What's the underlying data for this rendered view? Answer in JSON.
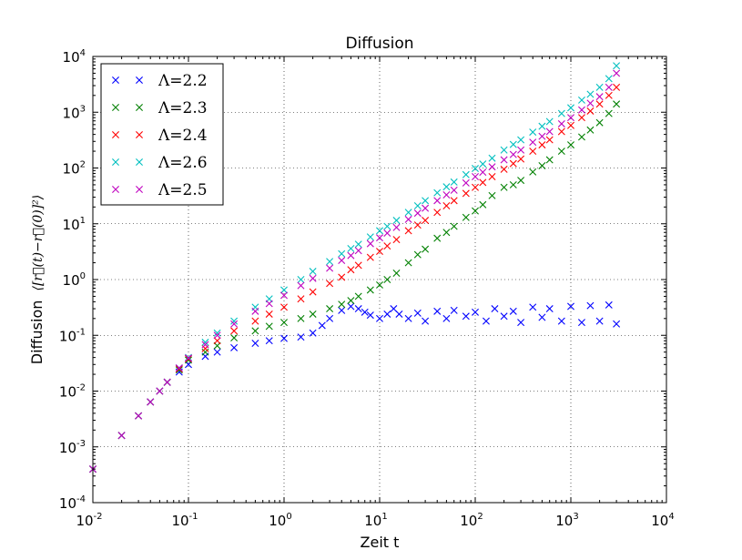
{
  "chart_data": {
    "type": "scatter",
    "title": "Diffusion",
    "xlabel": "Zeit t",
    "ylabel_prefix": "Diffusion",
    "ylabel_math": "⟨[r⃗(t)−r⃗(0)]²⟩",
    "xscale": "log",
    "yscale": "log",
    "xlim": [
      0.01,
      10000
    ],
    "ylim": [
      0.0001,
      10000
    ],
    "grid": true,
    "legend_placement": "top-left",
    "marker": "x",
    "x_ticks": [
      {
        "base": "10",
        "exp": "-2"
      },
      {
        "base": "10",
        "exp": "-1"
      },
      {
        "base": "10",
        "exp": "0"
      },
      {
        "base": "10",
        "exp": "1"
      },
      {
        "base": "10",
        "exp": "2"
      },
      {
        "base": "10",
        "exp": "3"
      },
      {
        "base": "10",
        "exp": "4"
      }
    ],
    "y_ticks": [
      {
        "base": "10",
        "exp": "-4"
      },
      {
        "base": "10",
        "exp": "-3"
      },
      {
        "base": "10",
        "exp": "-2"
      },
      {
        "base": "10",
        "exp": "-1"
      },
      {
        "base": "10",
        "exp": "0"
      },
      {
        "base": "10",
        "exp": "1"
      },
      {
        "base": "10",
        "exp": "2"
      },
      {
        "base": "10",
        "exp": "3"
      },
      {
        "base": "10",
        "exp": "4"
      }
    ],
    "series": [
      {
        "name": "Λ=2.2",
        "color": "#0000ff",
        "points": [
          [
            0.01,
            0.0004
          ],
          [
            0.02,
            0.0016
          ],
          [
            0.03,
            0.0036
          ],
          [
            0.04,
            0.0064
          ],
          [
            0.05,
            0.01
          ],
          [
            0.06,
            0.0144
          ],
          [
            0.08,
            0.022
          ],
          [
            0.1,
            0.03
          ],
          [
            0.15,
            0.042
          ],
          [
            0.2,
            0.05
          ],
          [
            0.3,
            0.06
          ],
          [
            0.5,
            0.072
          ],
          [
            0.7,
            0.08
          ],
          [
            1,
            0.088
          ],
          [
            1.5,
            0.093
          ],
          [
            2,
            0.11
          ],
          [
            2.5,
            0.15
          ],
          [
            3,
            0.2
          ],
          [
            4,
            0.28
          ],
          [
            5,
            0.33
          ],
          [
            6,
            0.3
          ],
          [
            7,
            0.26
          ],
          [
            8,
            0.23
          ],
          [
            10,
            0.2
          ],
          [
            12,
            0.24
          ],
          [
            14,
            0.3
          ],
          [
            16,
            0.24
          ],
          [
            20,
            0.2
          ],
          [
            25,
            0.25
          ],
          [
            30,
            0.18
          ],
          [
            40,
            0.27
          ],
          [
            50,
            0.2
          ],
          [
            60,
            0.28
          ],
          [
            80,
            0.22
          ],
          [
            100,
            0.26
          ],
          [
            130,
            0.18
          ],
          [
            160,
            0.3
          ],
          [
            200,
            0.22
          ],
          [
            250,
            0.27
          ],
          [
            300,
            0.17
          ],
          [
            400,
            0.32
          ],
          [
            500,
            0.21
          ],
          [
            600,
            0.3
          ],
          [
            800,
            0.18
          ],
          [
            1000,
            0.33
          ],
          [
            1300,
            0.17
          ],
          [
            1600,
            0.34
          ],
          [
            2000,
            0.18
          ],
          [
            2500,
            0.35
          ],
          [
            3000,
            0.16
          ]
        ]
      },
      {
        "name": "Λ=2.3",
        "color": "#008000",
        "points": [
          [
            0.01,
            0.0004
          ],
          [
            0.02,
            0.0016
          ],
          [
            0.03,
            0.0036
          ],
          [
            0.04,
            0.0064
          ],
          [
            0.05,
            0.01
          ],
          [
            0.06,
            0.0144
          ],
          [
            0.08,
            0.024
          ],
          [
            0.1,
            0.036
          ],
          [
            0.15,
            0.05
          ],
          [
            0.2,
            0.065
          ],
          [
            0.3,
            0.09
          ],
          [
            0.5,
            0.12
          ],
          [
            0.7,
            0.145
          ],
          [
            1,
            0.17
          ],
          [
            1.5,
            0.2
          ],
          [
            2,
            0.24
          ],
          [
            3,
            0.3
          ],
          [
            4,
            0.36
          ],
          [
            5,
            0.42
          ],
          [
            6,
            0.5
          ],
          [
            8,
            0.65
          ],
          [
            10,
            0.8
          ],
          [
            12,
            1.0
          ],
          [
            15,
            1.3
          ],
          [
            20,
            2.0
          ],
          [
            25,
            2.8
          ],
          [
            30,
            3.5
          ],
          [
            40,
            5.5
          ],
          [
            50,
            7.0
          ],
          [
            60,
            9.0
          ],
          [
            80,
            13
          ],
          [
            100,
            17
          ],
          [
            120,
            22
          ],
          [
            150,
            32
          ],
          [
            200,
            45
          ],
          [
            250,
            50
          ],
          [
            300,
            60
          ],
          [
            400,
            85
          ],
          [
            500,
            110
          ],
          [
            600,
            140
          ],
          [
            800,
            200
          ],
          [
            1000,
            260
          ],
          [
            1300,
            360
          ],
          [
            1600,
            480
          ],
          [
            2000,
            650
          ],
          [
            2500,
            950
          ],
          [
            3000,
            1400
          ]
        ]
      },
      {
        "name": "Λ=2.4",
        "color": "#ff0000",
        "points": [
          [
            0.01,
            0.0004
          ],
          [
            0.02,
            0.0016
          ],
          [
            0.03,
            0.0036
          ],
          [
            0.04,
            0.0064
          ],
          [
            0.05,
            0.01
          ],
          [
            0.06,
            0.0144
          ],
          [
            0.08,
            0.025
          ],
          [
            0.1,
            0.038
          ],
          [
            0.15,
            0.058
          ],
          [
            0.2,
            0.08
          ],
          [
            0.3,
            0.12
          ],
          [
            0.5,
            0.18
          ],
          [
            0.7,
            0.24
          ],
          [
            1,
            0.32
          ],
          [
            1.5,
            0.45
          ],
          [
            2,
            0.6
          ],
          [
            3,
            0.85
          ],
          [
            4,
            1.1
          ],
          [
            5,
            1.5
          ],
          [
            6,
            1.8
          ],
          [
            8,
            2.5
          ],
          [
            10,
            3.2
          ],
          [
            12,
            4.0
          ],
          [
            15,
            5.2
          ],
          [
            20,
            7.5
          ],
          [
            25,
            9.5
          ],
          [
            30,
            11.5
          ],
          [
            40,
            16
          ],
          [
            50,
            21
          ],
          [
            60,
            26
          ],
          [
            80,
            35
          ],
          [
            100,
            45
          ],
          [
            120,
            55
          ],
          [
            150,
            70
          ],
          [
            200,
            95
          ],
          [
            250,
            120
          ],
          [
            300,
            145
          ],
          [
            400,
            200
          ],
          [
            500,
            260
          ],
          [
            600,
            320
          ],
          [
            800,
            450
          ],
          [
            1000,
            580
          ],
          [
            1300,
            800
          ],
          [
            1600,
            1050
          ],
          [
            2000,
            1400
          ],
          [
            2500,
            2000
          ],
          [
            3000,
            2800
          ]
        ]
      },
      {
        "name": "Λ=2.6",
        "color": "#00bfbf",
        "points": [
          [
            0.01,
            0.0004
          ],
          [
            0.02,
            0.0016
          ],
          [
            0.03,
            0.0036
          ],
          [
            0.04,
            0.0064
          ],
          [
            0.05,
            0.01
          ],
          [
            0.06,
            0.0144
          ],
          [
            0.08,
            0.026
          ],
          [
            0.1,
            0.04
          ],
          [
            0.15,
            0.075
          ],
          [
            0.2,
            0.11
          ],
          [
            0.3,
            0.18
          ],
          [
            0.5,
            0.32
          ],
          [
            0.7,
            0.45
          ],
          [
            1,
            0.65
          ],
          [
            1.5,
            1.0
          ],
          [
            2,
            1.4
          ],
          [
            3,
            2.1
          ],
          [
            4,
            2.9
          ],
          [
            5,
            3.6
          ],
          [
            6,
            4.3
          ],
          [
            8,
            5.8
          ],
          [
            10,
            7.5
          ],
          [
            12,
            9.0
          ],
          [
            15,
            11.5
          ],
          [
            20,
            16
          ],
          [
            25,
            21
          ],
          [
            30,
            26
          ],
          [
            40,
            36
          ],
          [
            50,
            46
          ],
          [
            60,
            56
          ],
          [
            80,
            76
          ],
          [
            100,
            98
          ],
          [
            120,
            118
          ],
          [
            150,
            150
          ],
          [
            200,
            210
          ],
          [
            250,
            265
          ],
          [
            300,
            320
          ],
          [
            400,
            440
          ],
          [
            500,
            560
          ],
          [
            600,
            680
          ],
          [
            800,
            950
          ],
          [
            1000,
            1200
          ],
          [
            1300,
            1650
          ],
          [
            1600,
            2100
          ],
          [
            2000,
            2800
          ],
          [
            2500,
            4000
          ],
          [
            3000,
            6800
          ]
        ]
      },
      {
        "name": "Λ=2.5",
        "color": "#bf00bf",
        "points": [
          [
            0.01,
            0.0004
          ],
          [
            0.02,
            0.0016
          ],
          [
            0.03,
            0.0036
          ],
          [
            0.04,
            0.0064
          ],
          [
            0.05,
            0.01
          ],
          [
            0.06,
            0.0144
          ],
          [
            0.08,
            0.026
          ],
          [
            0.1,
            0.039
          ],
          [
            0.15,
            0.068
          ],
          [
            0.2,
            0.1
          ],
          [
            0.3,
            0.16
          ],
          [
            0.5,
            0.27
          ],
          [
            0.7,
            0.37
          ],
          [
            1,
            0.52
          ],
          [
            1.5,
            0.78
          ],
          [
            2,
            1.05
          ],
          [
            3,
            1.6
          ],
          [
            4,
            2.2
          ],
          [
            5,
            2.7
          ],
          [
            6,
            3.3
          ],
          [
            8,
            4.4
          ],
          [
            10,
            5.6
          ],
          [
            12,
            6.8
          ],
          [
            15,
            8.6
          ],
          [
            20,
            12
          ],
          [
            25,
            15.5
          ],
          [
            30,
            19
          ],
          [
            40,
            26
          ],
          [
            50,
            33
          ],
          [
            60,
            40
          ],
          [
            80,
            54
          ],
          [
            100,
            70
          ],
          [
            120,
            84
          ],
          [
            150,
            105
          ],
          [
            200,
            140
          ],
          [
            250,
            175
          ],
          [
            300,
            210
          ],
          [
            400,
            290
          ],
          [
            500,
            370
          ],
          [
            600,
            450
          ],
          [
            800,
            620
          ],
          [
            1000,
            800
          ],
          [
            1300,
            1100
          ],
          [
            1600,
            1450
          ],
          [
            2000,
            1900
          ],
          [
            2500,
            2800
          ],
          [
            3000,
            5000
          ]
        ]
      }
    ]
  }
}
